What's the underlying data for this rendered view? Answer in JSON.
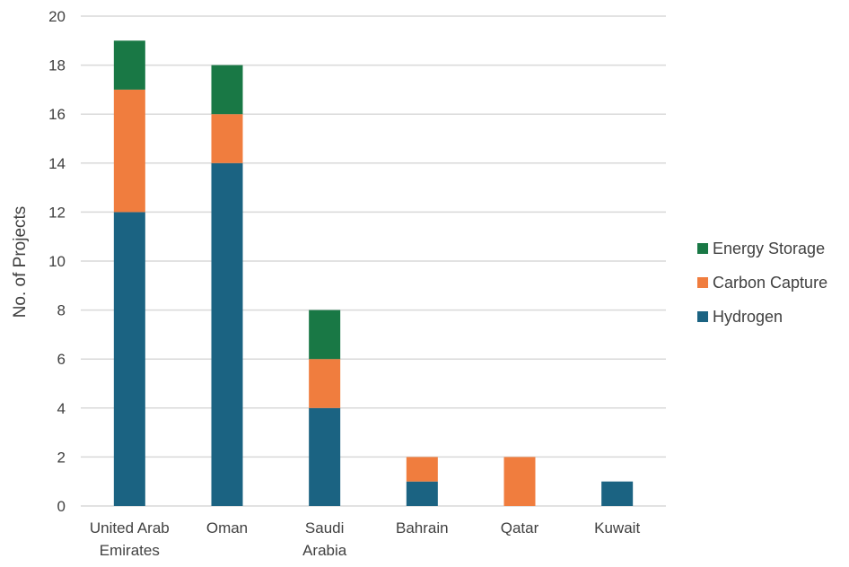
{
  "chart_data": {
    "type": "bar",
    "stacked": true,
    "title": "",
    "xlabel": "",
    "ylabel": "No. of Projects",
    "ylim": [
      0,
      20
    ],
    "yticks": [
      "0",
      "2",
      "4",
      "6",
      "8",
      "10",
      "12",
      "14",
      "16",
      "18",
      "20"
    ],
    "categories": [
      [
        "United Arab",
        "Emirates"
      ],
      [
        "Oman"
      ],
      [
        "Saudi",
        "Arabia"
      ],
      [
        "Bahrain"
      ],
      [
        "Qatar"
      ],
      [
        "Kuwait"
      ]
    ],
    "series": [
      {
        "name": "Hydrogen",
        "color": "#1b6382",
        "values": [
          12,
          14,
          4,
          1,
          0,
          1
        ]
      },
      {
        "name": "Carbon Capture",
        "color": "#f07d3e",
        "values": [
          5,
          2,
          2,
          1,
          2,
          0
        ]
      },
      {
        "name": "Energy Storage",
        "color": "#197845",
        "values": [
          2,
          2,
          2,
          0,
          0,
          0
        ]
      }
    ],
    "legend_order": [
      "Energy Storage",
      "Carbon Capture",
      "Hydrogen"
    ],
    "legend_position": "right",
    "grid": true
  }
}
